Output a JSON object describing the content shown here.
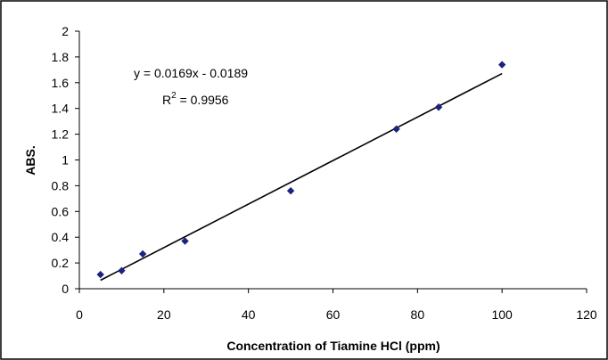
{
  "chart_data": {
    "type": "scatter",
    "title": "",
    "xlabel": "Concentration of Tiamine HCl (ppm)",
    "ylabel": "ABS.",
    "xlim": [
      0,
      120
    ],
    "ylim": [
      0,
      2
    ],
    "x_ticks": [
      0,
      20,
      40,
      60,
      80,
      100,
      120
    ],
    "y_ticks": [
      0,
      0.2,
      0.4,
      0.6,
      0.8,
      1,
      1.2,
      1.4,
      1.6,
      1.8,
      2
    ],
    "x_tick_labels": [
      "0",
      "20",
      "40",
      "60",
      "80",
      "100",
      "120"
    ],
    "y_tick_labels": [
      "0",
      "0.2",
      "0.4",
      "0.6",
      "0.8",
      "1",
      "1.2",
      "1.4",
      "1.6",
      "1.8",
      "2"
    ],
    "grid": false,
    "legend": "none",
    "marker_color": "#1a237e",
    "line_color": "#000000",
    "series": [
      {
        "x": [
          5,
          10,
          15,
          25,
          50,
          75,
          85,
          100
        ],
        "y": [
          0.11,
          0.14,
          0.27,
          0.37,
          0.76,
          1.24,
          1.41,
          1.74
        ]
      }
    ],
    "trendline": {
      "slope": 0.0169,
      "intercept": -0.0189,
      "x_range": [
        5,
        100
      ],
      "equation_text": "y = 0.0169x - 0.0189",
      "r2_prefix": "R",
      "r2_sup": "2",
      "r2_suffix": " = 0.9956"
    }
  }
}
